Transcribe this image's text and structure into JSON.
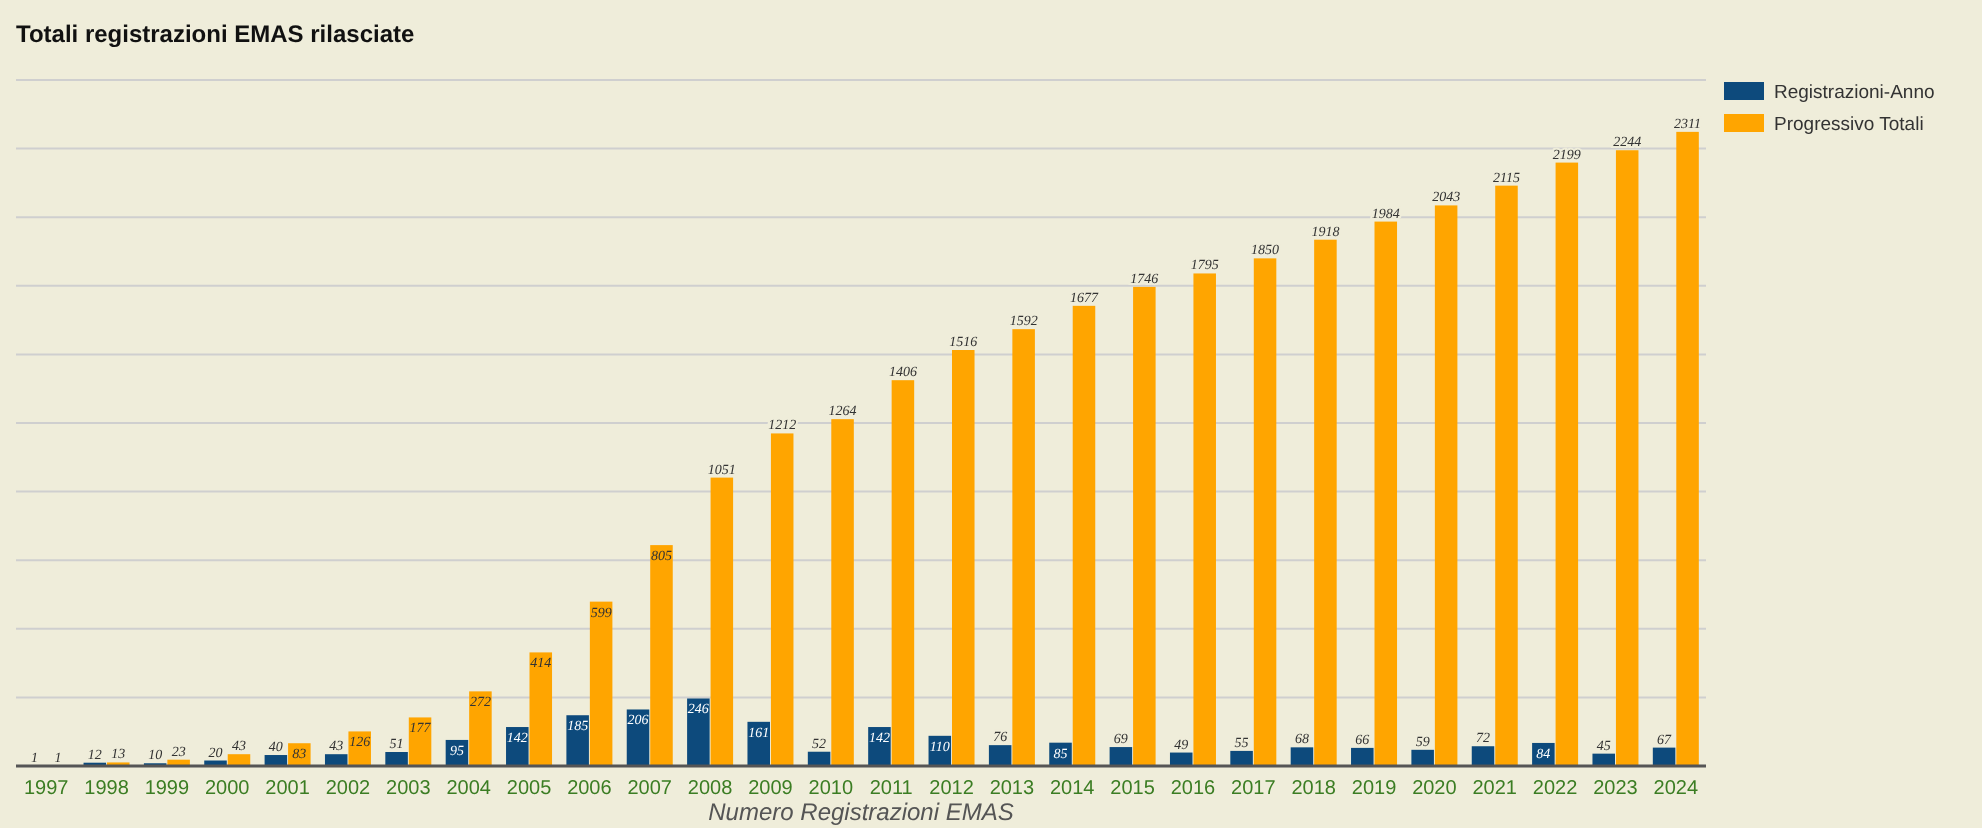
{
  "chart_data": {
    "type": "bar",
    "title": "Totali registrazioni EMAS rilasciate",
    "xlabel": "Numero Registrazioni EMAS",
    "categories": [
      "1997",
      "1998",
      "1999",
      "2000",
      "2001",
      "2002",
      "2003",
      "2004",
      "2005",
      "2006",
      "2007",
      "2008",
      "2009",
      "2010",
      "2011",
      "2012",
      "2013",
      "2014",
      "2015",
      "2016",
      "2017",
      "2018",
      "2019",
      "2020",
      "2021",
      "2022",
      "2023",
      "2024"
    ],
    "series": [
      {
        "name": "Registrazioni-Anno",
        "color": "#0d4a7c",
        "values": [
          1,
          12,
          10,
          20,
          40,
          43,
          51,
          95,
          142,
          185,
          206,
          246,
          161,
          52,
          142,
          110,
          76,
          85,
          69,
          49,
          55,
          68,
          66,
          59,
          72,
          84,
          45,
          67
        ]
      },
      {
        "name": "Progressivo Totali",
        "color": "#ffa500",
        "values": [
          1,
          13,
          23,
          43,
          83,
          126,
          177,
          272,
          414,
          599,
          805,
          1051,
          1212,
          1264,
          1406,
          1516,
          1592,
          1677,
          1746,
          1795,
          1850,
          1918,
          1984,
          2043,
          2115,
          2199,
          2244,
          2311
        ]
      }
    ],
    "ylim": [
      0,
      2500
    ],
    "yticks": [
      {
        "value": 0,
        "label": null
      },
      {
        "value": 250,
        "label": null
      },
      {
        "value": 500,
        "label": null
      },
      {
        "value": 750,
        "label": null
      },
      {
        "value": 1000,
        "label": null
      },
      {
        "value": 1250,
        "label": null
      },
      {
        "value": 1500,
        "label": null
      },
      {
        "value": 1750,
        "label": null
      },
      {
        "value": 2000,
        "label": null
      },
      {
        "value": 2250,
        "label": null
      },
      {
        "value": 2500,
        "label": null
      }
    ],
    "grid": "y",
    "tick_labels": "x",
    "legend": "top right",
    "data_labels": true
  }
}
